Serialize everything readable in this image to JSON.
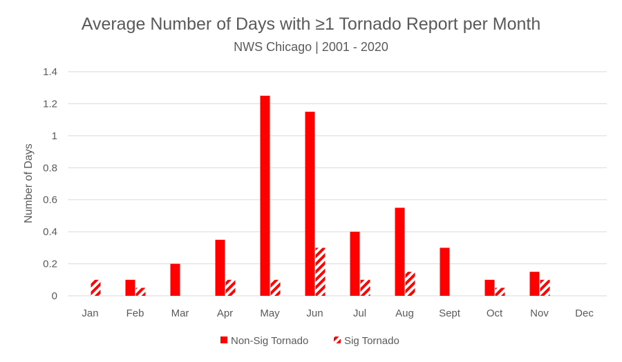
{
  "chart_data": {
    "type": "bar",
    "title": "Average Number of Days with ≥1 Tornado Report per Month",
    "subtitle": "NWS Chicago | 2001 - 2020",
    "xlabel": "",
    "ylabel": "Number of Days",
    "ylim": [
      0,
      1.4
    ],
    "yticks": [
      "0",
      "0.2",
      "0.4",
      "0.6",
      "0.8",
      "1",
      "1.2",
      "1.4"
    ],
    "categories": [
      "Jan",
      "Feb",
      "Mar",
      "Apr",
      "May",
      "Jun",
      "Jul",
      "Aug",
      "Sept",
      "Oct",
      "Nov",
      "Dec"
    ],
    "series": [
      {
        "name": "Non-Sig Tornado",
        "color": "#ff0000",
        "pattern": "solid",
        "values": [
          0,
          0.1,
          0.2,
          0.35,
          1.25,
          1.15,
          0.4,
          0.55,
          0.3,
          0.1,
          0.15,
          0
        ]
      },
      {
        "name": "Sig Tornado",
        "color": "#ff0000",
        "pattern": "diagonal-stripes",
        "values": [
          0.1,
          0.05,
          0,
          0.1,
          0.1,
          0.3,
          0.1,
          0.15,
          0,
          0.05,
          0.1,
          0
        ]
      }
    ],
    "grid": true,
    "legend_position": "bottom"
  }
}
